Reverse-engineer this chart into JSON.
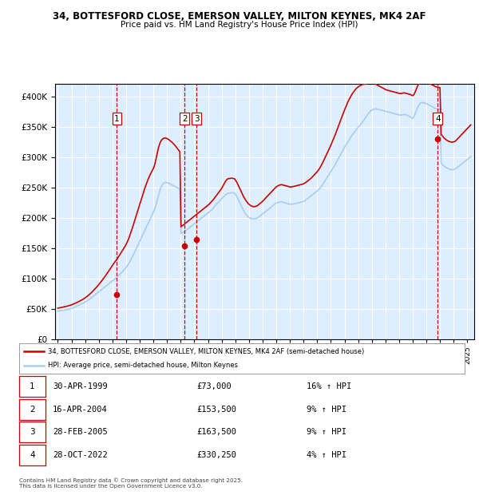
{
  "title_line1": "34, BOTTESFORD CLOSE, EMERSON VALLEY, MILTON KEYNES, MK4 2AF",
  "title_line2": "Price paid vs. HM Land Registry's House Price Index (HPI)",
  "bg_color": "#ddeeff",
  "legend_line1": "34, BOTTESFORD CLOSE, EMERSON VALLEY, MILTON KEYNES, MK4 2AF (semi-detached house)",
  "legend_line2": "HPI: Average price, semi-detached house, Milton Keynes",
  "footer": "Contains HM Land Registry data © Crown copyright and database right 2025.\nThis data is licensed under the Open Government Licence v3.0.",
  "transactions": [
    {
      "num": 1,
      "date": "30-APR-1999",
      "price": 73000,
      "pct": "16%",
      "dir": "↑",
      "x_year": 1999.33
    },
    {
      "num": 2,
      "date": "16-APR-2004",
      "price": 153500,
      "pct": "9%",
      "dir": "↑",
      "x_year": 2004.29
    },
    {
      "num": 3,
      "date": "28-FEB-2005",
      "price": 163500,
      "pct": "9%",
      "dir": "↑",
      "x_year": 2005.16
    },
    {
      "num": 4,
      "date": "28-OCT-2022",
      "price": 330250,
      "pct": "4%",
      "dir": "↑",
      "x_year": 2022.83
    }
  ],
  "ylim": [
    0,
    420000
  ],
  "xlim_start": 1994.8,
  "xlim_end": 2025.5,
  "yticks": [
    0,
    50000,
    100000,
    150000,
    200000,
    250000,
    300000,
    350000,
    400000
  ],
  "xticks": [
    1995,
    1996,
    1997,
    1998,
    1999,
    2000,
    2001,
    2002,
    2003,
    2004,
    2005,
    2006,
    2007,
    2008,
    2009,
    2010,
    2011,
    2012,
    2013,
    2014,
    2015,
    2016,
    2017,
    2018,
    2019,
    2020,
    2021,
    2022,
    2023,
    2024,
    2025
  ],
  "hpi_color": "#aaccee",
  "price_color": "#cc0000",
  "vline_color": "#cc0000",
  "grid_color": "#ffffff",
  "hpi_base_values": [
    46000,
    46200,
    46500,
    46800,
    47100,
    47400,
    47700,
    48100,
    48500,
    49000,
    49500,
    50000,
    50500,
    51200,
    52000,
    52800,
    53600,
    54500,
    55400,
    56300,
    57200,
    58100,
    59000,
    60000,
    61000,
    62200,
    63400,
    64700,
    66000,
    67500,
    69000,
    70500,
    72000,
    73500,
    75000,
    76500,
    78000,
    79500,
    81000,
    82500,
    84000,
    85500,
    87000,
    88500,
    90000,
    91500,
    93000,
    94500,
    96000,
    97500,
    99000,
    100500,
    102000,
    104000,
    106000,
    108000,
    110000,
    112000,
    114000,
    116000,
    118500,
    121000,
    124000,
    127000,
    130500,
    134000,
    138000,
    142000,
    146000,
    150000,
    154000,
    158000,
    162000,
    166000,
    170000,
    174000,
    178000,
    182000,
    186000,
    190000,
    194000,
    198000,
    202000,
    206000,
    210000,
    215000,
    221000,
    228000,
    235000,
    242000,
    248000,
    252000,
    255000,
    257000,
    258000,
    258000,
    257500,
    257000,
    256000,
    255000,
    254000,
    253000,
    252000,
    251000,
    250000,
    249000,
    248000,
    247000,
    174000,
    175000,
    176000,
    177000,
    178500,
    180000,
    181500,
    183000,
    184500,
    186000,
    187500,
    189000,
    190500,
    192000,
    193500,
    195000,
    196500,
    198000,
    199500,
    201000,
    202500,
    204000,
    205500,
    207000,
    208500,
    210000,
    211500,
    213000,
    215000,
    217500,
    220000,
    222000,
    224000,
    226000,
    228000,
    230000,
    232000,
    234000,
    236000,
    238000,
    239000,
    240000,
    240500,
    240800,
    241000,
    241200,
    241000,
    240500,
    238000,
    235000,
    231000,
    227000,
    223000,
    219000,
    215000,
    211000,
    208000,
    205000,
    203000,
    201000,
    200000,
    199000,
    198500,
    198000,
    198000,
    198500,
    199000,
    200000,
    201000,
    202500,
    204000,
    205500,
    207000,
    208500,
    210000,
    211500,
    213000,
    214500,
    216000,
    217500,
    219000,
    220500,
    222000,
    223500,
    224500,
    225000,
    225500,
    226000,
    226000,
    225500,
    225000,
    224500,
    224000,
    223500,
    223000,
    222500,
    222000,
    222200,
    222400,
    222700,
    223000,
    223500,
    224000,
    224500,
    225000,
    225500,
    226000,
    226500,
    227500,
    228500,
    230000,
    231500,
    233000,
    234500,
    236000,
    237500,
    239000,
    240500,
    242000,
    243500,
    245000,
    247000,
    249000,
    251500,
    254000,
    257000,
    260000,
    263000,
    266000,
    269000,
    272000,
    275000,
    278000,
    281000,
    284000,
    287000,
    290500,
    294000,
    297500,
    301000,
    304500,
    308000,
    311500,
    315000,
    318000,
    321000,
    324000,
    327000,
    330000,
    333000,
    336000,
    338500,
    341000,
    343500,
    346000,
    348500,
    350500,
    352500,
    355000,
    357500,
    360000,
    362500,
    365500,
    368500,
    371000,
    373500,
    375500,
    377000,
    378000,
    378500,
    379000,
    379500,
    379000,
    378500,
    378000,
    377500,
    377000,
    376500,
    376000,
    375500,
    375000,
    374500,
    374000,
    373500,
    373000,
    372500,
    372000,
    371500,
    371000,
    370500,
    370000,
    369500,
    369000,
    369000,
    369500,
    370000,
    370000,
    369500,
    369000,
    368000,
    367000,
    366000,
    365000,
    364000,
    366000,
    370000,
    375000,
    380000,
    384000,
    387000,
    389000,
    390000,
    389500,
    389000,
    388500,
    388000,
    387000,
    386000,
    385000,
    384000,
    383000,
    382000,
    381000,
    380000,
    379500,
    379000,
    378500,
    378000,
    290000,
    288000,
    286000,
    284500,
    283000,
    282000,
    281000,
    280000,
    279500,
    279000,
    279000,
    279500,
    280000,
    281000,
    282500,
    284000,
    285500,
    287000,
    288500,
    290000,
    291500,
    293000,
    294500,
    296000,
    297500,
    299000,
    300500
  ],
  "price_indexed_values": [
    51000,
    51300,
    51600,
    52000,
    52400,
    52800,
    53200,
    53700,
    54200,
    54700,
    55200,
    55800,
    56400,
    57100,
    57900,
    58700,
    59600,
    60500,
    61400,
    62400,
    63400,
    64400,
    65500,
    66700,
    68000,
    69400,
    70900,
    72400,
    74000,
    75800,
    77600,
    79500,
    81500,
    83500,
    85500,
    87700,
    90000,
    92300,
    94700,
    97200,
    99700,
    102300,
    104900,
    107600,
    110300,
    113100,
    116000,
    119000,
    122000,
    124500,
    127000,
    129500,
    132000,
    135000,
    138000,
    141000,
    144000,
    147000,
    150000,
    153000,
    156500,
    160500,
    165000,
    170000,
    175500,
    181000,
    187000,
    193000,
    199000,
    205000,
    211000,
    217000,
    223000,
    229000,
    235000,
    241000,
    247000,
    252500,
    257500,
    262500,
    267000,
    271000,
    275000,
    278500,
    282000,
    288000,
    296000,
    305000,
    313500,
    320000,
    325000,
    328000,
    330000,
    331000,
    331500,
    331000,
    330000,
    329000,
    327500,
    326000,
    324500,
    322500,
    320500,
    318500,
    316000,
    313500,
    311000,
    308500,
    185000,
    186500,
    188000,
    189500,
    191000,
    192500,
    194000,
    195500,
    197000,
    198500,
    200000,
    201500,
    203000,
    204500,
    206000,
    207500,
    209000,
    210500,
    212000,
    213500,
    215000,
    216500,
    218000,
    219500,
    221000,
    223000,
    225000,
    227000,
    229000,
    231500,
    234000,
    236500,
    239000,
    241500,
    244000,
    246500,
    249500,
    253000,
    256500,
    260000,
    262500,
    264000,
    264500,
    264800,
    265000,
    265000,
    264500,
    264000,
    261000,
    258000,
    254000,
    250000,
    246000,
    242000,
    238000,
    234000,
    231000,
    228000,
    225500,
    223000,
    221500,
    220000,
    219000,
    218500,
    218000,
    218500,
    219000,
    220000,
    221500,
    223000,
    224500,
    226000,
    228000,
    230000,
    232000,
    234000,
    236000,
    238000,
    240000,
    242000,
    244000,
    246000,
    248000,
    250000,
    251500,
    252500,
    253500,
    254000,
    254500,
    254000,
    253500,
    253000,
    252500,
    252000,
    251500,
    251000,
    250500,
    250800,
    251200,
    251600,
    252000,
    252500,
    253000,
    253500,
    254000,
    254500,
    255000,
    255500,
    256500,
    257500,
    259000,
    260500,
    262000,
    263500,
    265000,
    267000,
    269000,
    271000,
    273000,
    275000,
    277500,
    280000,
    283000,
    286500,
    290000,
    294000,
    298000,
    302000,
    306000,
    310000,
    314000,
    318000,
    322500,
    327000,
    331500,
    336000,
    341000,
    346000,
    351000,
    356000,
    361000,
    366000,
    371000,
    376000,
    380500,
    385000,
    389500,
    393500,
    397000,
    400500,
    404000,
    406500,
    409000,
    411500,
    413500,
    415000,
    416500,
    417500,
    418500,
    419500,
    420000,
    420000,
    420500,
    421000,
    421500,
    422000,
    422500,
    422500,
    422000,
    421500,
    421000,
    420000,
    418500,
    417500,
    416500,
    415500,
    414500,
    413500,
    412500,
    411500,
    410500,
    410000,
    409500,
    409000,
    408500,
    408000,
    407500,
    407000,
    406500,
    406000,
    405500,
    405000,
    404500,
    404500,
    405000,
    405500,
    405500,
    405000,
    404500,
    404000,
    403500,
    403000,
    402000,
    401000,
    402500,
    406000,
    410500,
    415500,
    419500,
    422500,
    425000,
    426000,
    425500,
    425000,
    424500,
    424000,
    423000,
    422000,
    421000,
    420000,
    419000,
    418000,
    417000,
    416000,
    415500,
    415000,
    414500,
    414000,
    337500,
    335000,
    332500,
    330500,
    329000,
    327500,
    326500,
    325500,
    325000,
    324500,
    324500,
    325000,
    325500,
    327000,
    329000,
    331000,
    333000,
    335000,
    337000,
    339000,
    341000,
    343000,
    345000,
    347000,
    349000,
    351000,
    353000
  ]
}
